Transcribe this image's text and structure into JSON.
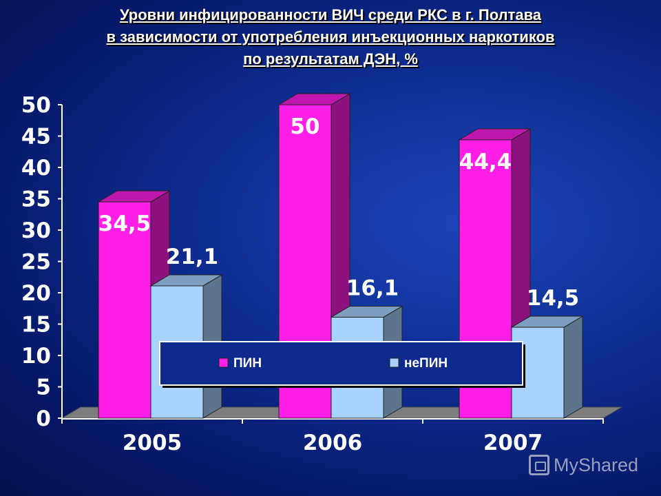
{
  "title": {
    "line1": "Уровни инфицированности ВИЧ среди РКС в г. Полтава",
    "line2": "в зависимости от употребления инъекционных наркотиков",
    "line3": "по результатам ДЭН, %"
  },
  "watermark": {
    "text": "MyShared",
    "icon": "myshared-logo-icon"
  },
  "chart_data": {
    "type": "bar",
    "style": "3d-clustered-column",
    "categories": [
      "2005",
      "2006",
      "2007"
    ],
    "series": [
      {
        "name": "ПИН",
        "values": [
          34.5,
          50,
          44.4
        ],
        "labels": [
          "34,5",
          "50",
          "44,4"
        ],
        "color": "#ff1ee6"
      },
      {
        "name": "неПИН",
        "values": [
          21.1,
          16.1,
          14.5
        ],
        "labels": [
          "21,1",
          "16,1",
          "14,5"
        ],
        "color": "#a8d2ff"
      }
    ],
    "ylim": [
      0,
      50
    ],
    "yticks": [
      "0",
      "5",
      "10",
      "15",
      "20",
      "25",
      "30",
      "35",
      "40",
      "45",
      "50"
    ],
    "legend": {
      "position": "center-bottom",
      "entries": [
        "ПИН",
        "неПИН"
      ]
    },
    "grid": false
  }
}
